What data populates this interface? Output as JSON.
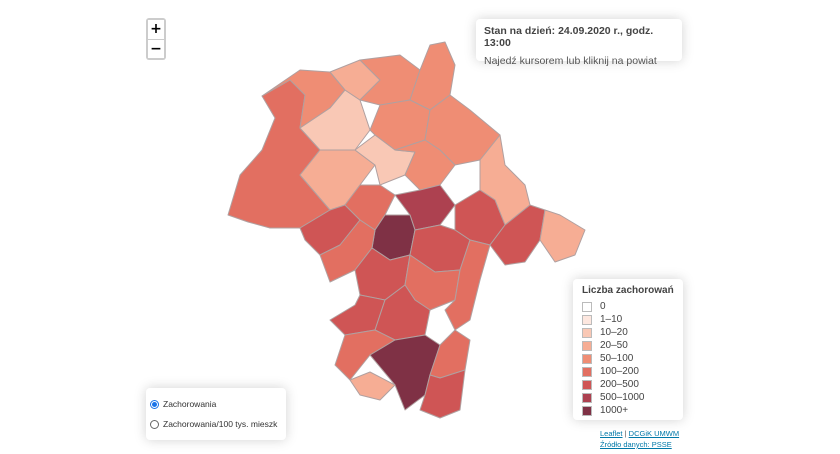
{
  "zoom": {
    "in_label": "+",
    "out_label": "−"
  },
  "info": {
    "date_text": "Stan na dzień: 24.09.2020 r., godz. 13:00",
    "hint": "Najedź kursorem lub kliknij na powiat"
  },
  "legend": {
    "title": "Liczba zachorowań",
    "items": [
      {
        "label": "0",
        "color": "#ffffff"
      },
      {
        "label": "1–10",
        "color": "#fde7df"
      },
      {
        "label": "10–20",
        "color": "#f9c8b5"
      },
      {
        "label": "20–50",
        "color": "#f6ad94"
      },
      {
        "label": "50–100",
        "color": "#ef8d74"
      },
      {
        "label": "100–200",
        "color": "#e26f61"
      },
      {
        "label": "200–500",
        "color": "#cf5555"
      },
      {
        "label": "500–1000",
        "color": "#ad4150"
      },
      {
        "label": "1000+",
        "color": "#7f3145"
      }
    ]
  },
  "layers": {
    "options": [
      {
        "label": "Zachorowania",
        "selected": true
      },
      {
        "label": "Zachorowania/100 tys. mieszk",
        "selected": false
      }
    ]
  },
  "attribution": {
    "leaflet": "Leaflet",
    "separator": " | ",
    "dcgik": "DCGiK UMWM",
    "source": "Źródło danych: PSSE"
  }
}
